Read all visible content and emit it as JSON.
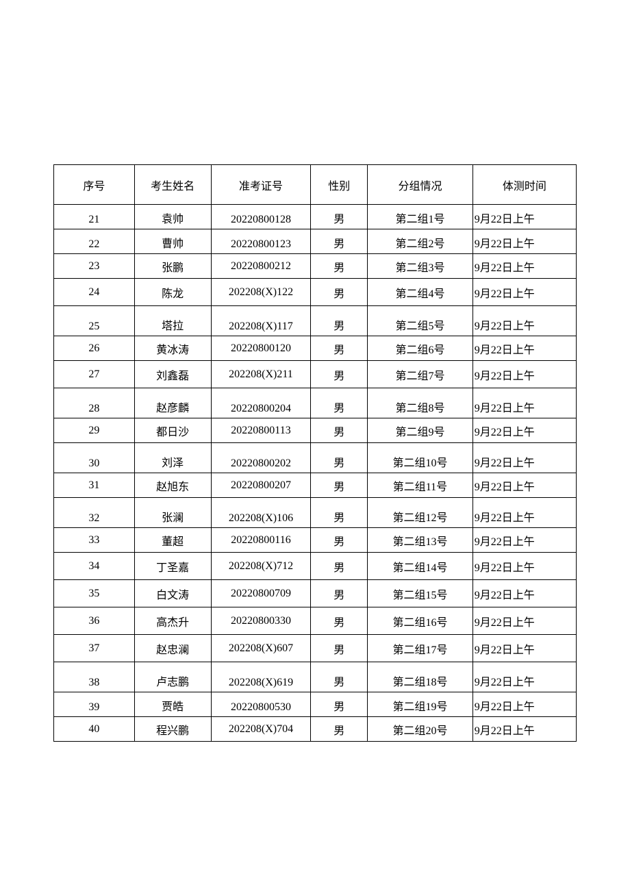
{
  "table": {
    "columns": [
      "序号",
      "考生姓名",
      "准考证号",
      "性别",
      "分组情况",
      "体测时间"
    ],
    "rows": [
      {
        "seq": "21",
        "name": "袁帅",
        "id": "20220800128",
        "gender": "男",
        "group": "第二组1号",
        "time": "9月22日上午",
        "style": "valign-bottom"
      },
      {
        "seq": "22",
        "name": "曹帅",
        "id": "20220800123",
        "gender": "男",
        "group": "第二组2号",
        "time": "9月22日上午",
        "style": "valign-bottom"
      },
      {
        "seq": "23",
        "name": "张鹏",
        "id": "20220800212",
        "gender": "男",
        "group": "第二组3号",
        "time": "9月22日上午",
        "style": ""
      },
      {
        "seq": "24",
        "name": "陈龙",
        "id": "202208(X)122",
        "gender": "男",
        "group": "第二组4号",
        "time": "9月22日上午",
        "style": "tall-row"
      },
      {
        "seq": "25",
        "name": "塔拉",
        "id": "202208(X)117",
        "gender": "男",
        "group": "第二组5号",
        "time": "9月22日上午",
        "style": "valign-bottom taller-row"
      },
      {
        "seq": "26",
        "name": "黄冰涛",
        "id": "20220800120",
        "gender": "男",
        "group": "第二组6号",
        "time": "9月22日上午",
        "style": ""
      },
      {
        "seq": "27",
        "name": "刘鑫磊",
        "id": "202208(X)211",
        "gender": "男",
        "group": "第二组7号",
        "time": "9月22日上午",
        "style": "tall-row"
      },
      {
        "seq": "28",
        "name": "赵彦麟",
        "id": "20220800204",
        "gender": "男",
        "group": "第二组8号",
        "time": "9月22日上午",
        "style": "valign-bottom taller-row"
      },
      {
        "seq": "29",
        "name": "都日沙",
        "id": "20220800113",
        "gender": "男",
        "group": "第二组9号",
        "time": "9月22日上午",
        "style": ""
      },
      {
        "seq": "30",
        "name": "刘泽",
        "id": "20220800202",
        "gender": "男",
        "group": "第二组10号",
        "time": "9月22日上午",
        "style": "valign-bottom taller-row"
      },
      {
        "seq": "31",
        "name": "赵旭东",
        "id": "20220800207",
        "gender": "男",
        "group": "第二组11号",
        "time": "9月22日上午",
        "style": ""
      },
      {
        "seq": "32",
        "name": "张澜",
        "id": "202208(X)106",
        "gender": "男",
        "group": "第二组12号",
        "time": "9月22日上午",
        "style": "valign-bottom taller-row"
      },
      {
        "seq": "33",
        "name": "董超",
        "id": "20220800116",
        "gender": "男",
        "group": "第二组13号",
        "time": "9月22日上午",
        "style": ""
      },
      {
        "seq": "34",
        "name": "丁圣嘉",
        "id": "202208(X)712",
        "gender": "男",
        "group": "第二组14号",
        "time": "9月22日上午",
        "style": "tall-row"
      },
      {
        "seq": "35",
        "name": "白文涛",
        "id": "20220800709",
        "gender": "男",
        "group": "第二组15号",
        "time": "9月22日上午",
        "style": "tall-row"
      },
      {
        "seq": "36",
        "name": "高杰升",
        "id": "20220800330",
        "gender": "男",
        "group": "第二组16号",
        "time": "9月22日上午",
        "style": "tall-row"
      },
      {
        "seq": "37",
        "name": "赵忠澜",
        "id": "202208(X)607",
        "gender": "男",
        "group": "第二组17号",
        "time": "9月22日上午",
        "style": "tall-row"
      },
      {
        "seq": "38",
        "name": "卢志鹏",
        "id": "202208(X)619",
        "gender": "男",
        "group": "第二组18号",
        "time": "9月22日上午",
        "style": "valign-bottom taller-row"
      },
      {
        "seq": "39",
        "name": "贾皓",
        "id": "20220800530",
        "gender": "男",
        "group": "第二组19号",
        "time": "9月22日上午",
        "style": "valign-bottom"
      },
      {
        "seq": "40",
        "name": "程兴鹏",
        "id": "202208(X)704",
        "gender": "男",
        "group": "第二组20号",
        "time": "9月22日上午",
        "style": ""
      }
    ]
  }
}
